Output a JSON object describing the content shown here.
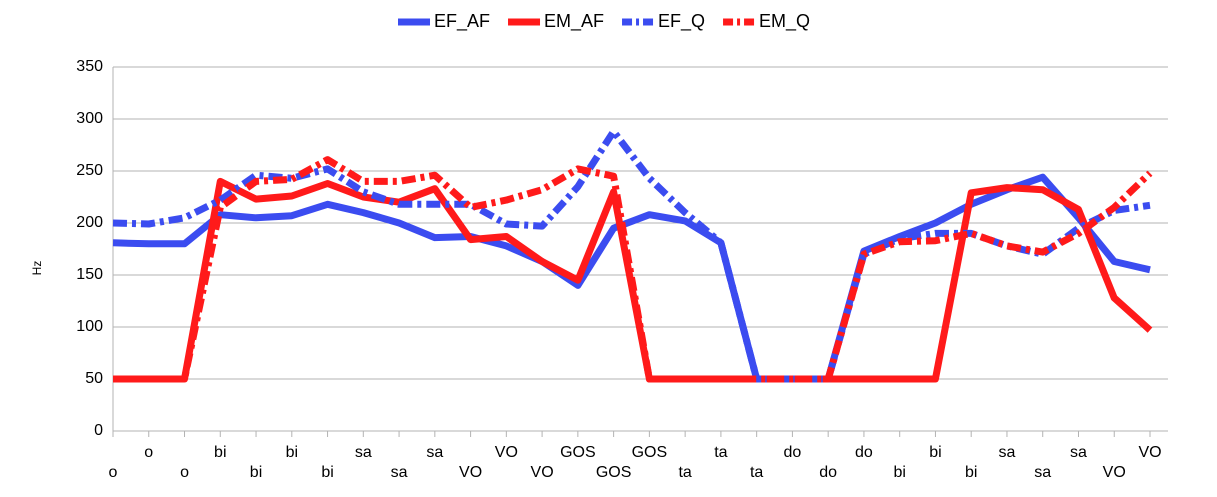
{
  "chart_data": {
    "type": "line",
    "ylabel": "Hz",
    "categories": [
      "o",
      "o",
      "o",
      "bi",
      "bi",
      "bi",
      "bi",
      "sa",
      "sa",
      "sa",
      "VO",
      "VO",
      "VO",
      "GOS",
      "GOS",
      "GOS",
      "ta",
      "ta",
      "ta",
      "do",
      "do",
      "do",
      "bi",
      "bi",
      "bi",
      "sa",
      "sa",
      "sa",
      "VO",
      "VO"
    ],
    "series": [
      {
        "name": "EF_AF",
        "color": "#3b4cf0",
        "style": "solid",
        "values": [
          181,
          180,
          180,
          208,
          205,
          207,
          218,
          210,
          200,
          186,
          187,
          178,
          163,
          140,
          195,
          208,
          202,
          181,
          50,
          50,
          50,
          173,
          187,
          200,
          218,
          232,
          244,
          205,
          163,
          155
        ]
      },
      {
        "name": "EM_AF",
        "color": "#ff1a1a",
        "style": "solid",
        "values": [
          50,
          50,
          50,
          240,
          223,
          226,
          238,
          225,
          220,
          233,
          184,
          187,
          163,
          145,
          230,
          50,
          50,
          50,
          50,
          50,
          50,
          50,
          50,
          50,
          229,
          234,
          232,
          213,
          128,
          97
        ]
      },
      {
        "name": "EF_Q",
        "color": "#3b4cf0",
        "style": "dashdot",
        "values": [
          200,
          199,
          205,
          222,
          246,
          243,
          252,
          230,
          218,
          218,
          218,
          199,
          197,
          235,
          288,
          243,
          210,
          181,
          50,
          50,
          50,
          170,
          185,
          190,
          190,
          178,
          170,
          195,
          212,
          217
        ]
      },
      {
        "name": "EM_Q",
        "color": "#ff1a1a",
        "style": "dashdot",
        "values": [
          50,
          50,
          50,
          215,
          240,
          242,
          261,
          240,
          240,
          246,
          215,
          222,
          232,
          252,
          245,
          50,
          50,
          50,
          50,
          50,
          50,
          170,
          182,
          183,
          190,
          178,
          172,
          190,
          215,
          248
        ]
      }
    ],
    "ylim": [
      0,
      350
    ],
    "yticks": [
      0,
      50,
      100,
      150,
      200,
      250,
      300,
      350
    ],
    "grid": true,
    "legend": "top"
  }
}
